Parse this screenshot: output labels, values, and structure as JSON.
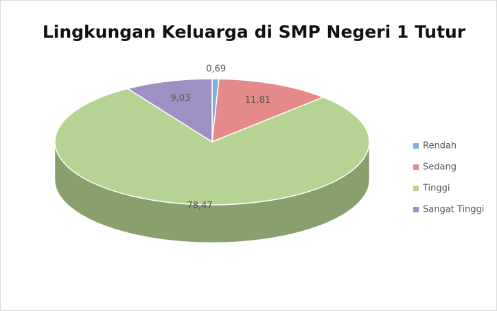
{
  "chart_data": {
    "type": "pie3d",
    "title": "Lingkungan Keluarga di SMP Negeri 1 Tutur",
    "categories": [
      "Rendah",
      "Sedang",
      "Tinggi",
      "Sangat Tinggi"
    ],
    "values": [
      0.69,
      11.81,
      78.47,
      9.03
    ],
    "value_labels": [
      "0,69",
      "11,81",
      "78,47",
      "9,03"
    ],
    "colors": [
      "#7fafe0",
      "#e58a8a",
      "#b5d493",
      "#9e8fc4"
    ],
    "legend": "right"
  }
}
